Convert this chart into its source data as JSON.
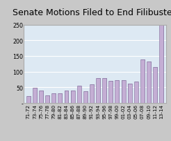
{
  "title": "Senate Motions Filed to End Filibuster",
  "categories": [
    "71-72",
    "73-74",
    "75-76",
    "77-78",
    "79-80",
    "81-82",
    "83-84",
    "85-86",
    "87-88",
    "89-90",
    "91-92",
    "93-94",
    "95-96",
    "97-98",
    "99-00",
    "01-02",
    "03-04",
    "05-06",
    "07-08",
    "09-10",
    "11-12",
    "13-14"
  ],
  "values": [
    22,
    48,
    40,
    24,
    30,
    30,
    40,
    40,
    55,
    38,
    60,
    80,
    80,
    70,
    72,
    72,
    62,
    68,
    139,
    133,
    115,
    250
  ],
  "bar_color": "#c4aed4",
  "bar_edge_color": "#9080a8",
  "bar_shadow_color": "#8878a8",
  "background_color": "#dde9f3",
  "outer_background": "#c8c8c8",
  "plot_border_color": "#aaaaaa",
  "ylim": [
    0,
    250
  ],
  "yticks": [
    0,
    50,
    100,
    150,
    200,
    250
  ],
  "ytick_labels": [
    "-",
    "50",
    "100",
    "150",
    "200",
    "250"
  ],
  "title_fontsize": 9,
  "tick_fontsize": 5.2
}
